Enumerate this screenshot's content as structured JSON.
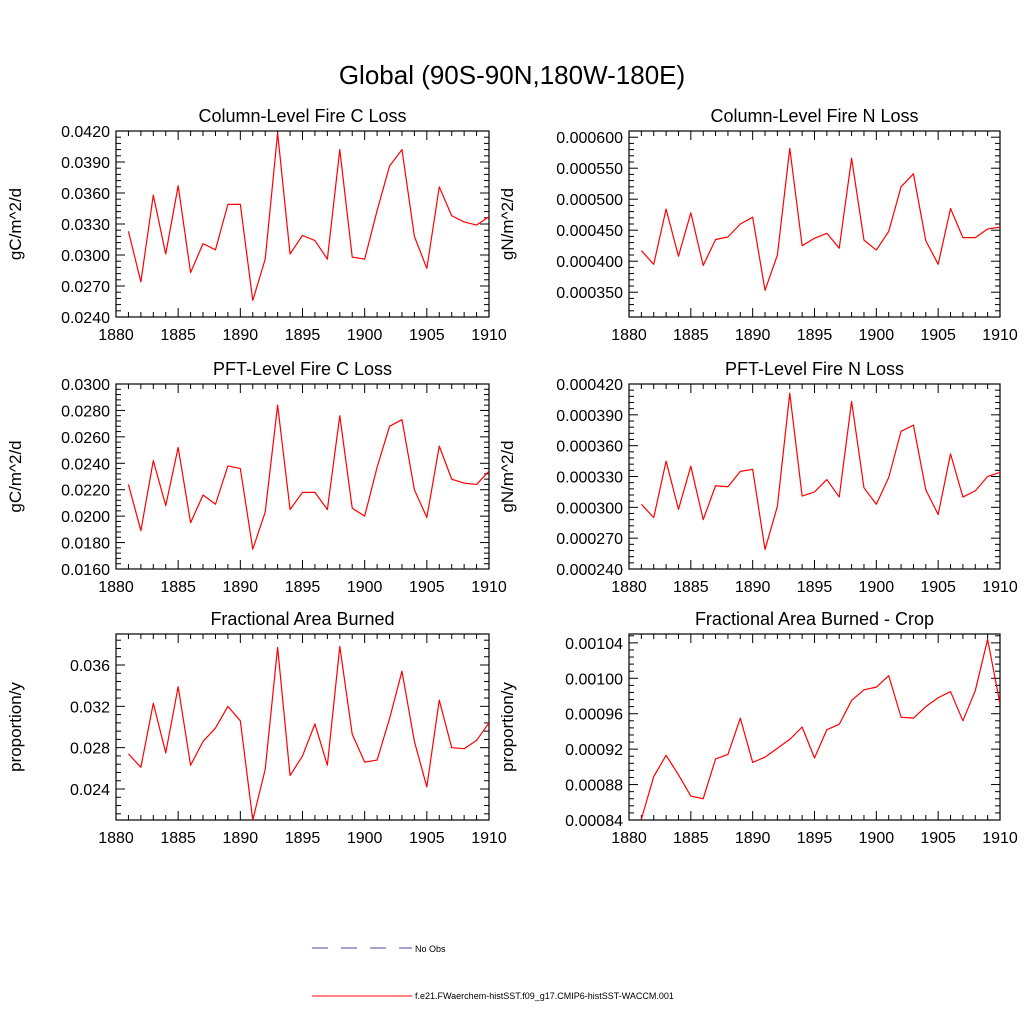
{
  "figure": {
    "title": "Global (90S-90N,180W-180E)"
  },
  "legend": {
    "items": [
      {
        "label": "No Obs",
        "color": "#4a4aa8",
        "style": "dashed"
      },
      {
        "label": "f.e21.FWaerchem-histSST.f09_g17.CMIP6-histSST-WACCM.001",
        "color": "#ff0000",
        "style": "solid"
      }
    ]
  },
  "chart_data": [
    {
      "type": "line",
      "title": "Column-Level Fire C Loss",
      "ylabel": "gC/m^2/d",
      "xlim": [
        1880,
        1910
      ],
      "ylim": [
        0.024,
        0.042
      ],
      "xticks": [
        "1880",
        "1885",
        "1890",
        "1895",
        "1900",
        "1905",
        "1910"
      ],
      "yticks": [
        "0.0240",
        "0.0270",
        "0.0300",
        "0.0330",
        "0.0360",
        "0.0390",
        "0.0420"
      ],
      "series": [
        {
          "color": "#ff0000",
          "x": [
            1881,
            1882,
            1883,
            1884,
            1885,
            1886,
            1887,
            1888,
            1889,
            1890,
            1891,
            1892,
            1893,
            1894,
            1895,
            1896,
            1897,
            1898,
            1899,
            1900,
            1901,
            1902,
            1903,
            1904,
            1905,
            1906,
            1907,
            1908,
            1909,
            1910
          ],
          "values": [
            0.0323,
            0.0274,
            0.0358,
            0.0301,
            0.0367,
            0.0283,
            0.0311,
            0.0305,
            0.0349,
            0.0349,
            0.0256,
            0.0296,
            0.0418,
            0.0301,
            0.0319,
            0.0314,
            0.0296,
            0.0402,
            0.0298,
            0.0296,
            0.0343,
            0.0386,
            0.0402,
            0.0318,
            0.0287,
            0.0366,
            0.0338,
            0.0332,
            0.0329,
            0.0337
          ]
        }
      ]
    },
    {
      "type": "line",
      "title": "Column-Level Fire N Loss",
      "ylabel": "gN/m^2/d",
      "xlim": [
        1880,
        1910
      ],
      "ylim": [
        0.00031,
        0.00061
      ],
      "xticks": [
        "1880",
        "1885",
        "1890",
        "1895",
        "1900",
        "1905",
        "1910"
      ],
      "yticks": [
        "0.000350",
        "0.000400",
        "0.000450",
        "0.000500",
        "0.000550",
        "0.000600"
      ],
      "series": [
        {
          "color": "#ff0000",
          "x": [
            1881,
            1882,
            1883,
            1884,
            1885,
            1886,
            1887,
            1888,
            1889,
            1890,
            1891,
            1892,
            1893,
            1894,
            1895,
            1896,
            1897,
            1898,
            1899,
            1900,
            1901,
            1902,
            1903,
            1904,
            1905,
            1906,
            1907,
            1908,
            1909,
            1910
          ],
          "values": [
            0.000417,
            0.000395,
            0.000484,
            0.000408,
            0.000478,
            0.000393,
            0.000435,
            0.000439,
            0.00046,
            0.000471,
            0.000353,
            0.00041,
            0.000582,
            0.000425,
            0.000437,
            0.000445,
            0.000421,
            0.000566,
            0.000434,
            0.000418,
            0.000448,
            0.00052,
            0.000541,
            0.000433,
            0.000395,
            0.000485,
            0.000438,
            0.000438,
            0.000452,
            0.000455
          ]
        }
      ]
    },
    {
      "type": "line",
      "title": "PFT-Level Fire C Loss",
      "ylabel": "gC/m^2/d",
      "xlim": [
        1880,
        1910
      ],
      "ylim": [
        0.016,
        0.03
      ],
      "xticks": [
        "1880",
        "1885",
        "1890",
        "1895",
        "1900",
        "1905",
        "1910"
      ],
      "yticks": [
        "0.0160",
        "0.0180",
        "0.0200",
        "0.0220",
        "0.0240",
        "0.0260",
        "0.0280",
        "0.0300"
      ],
      "series": [
        {
          "color": "#ff0000",
          "x": [
            1881,
            1882,
            1883,
            1884,
            1885,
            1886,
            1887,
            1888,
            1889,
            1890,
            1891,
            1892,
            1893,
            1894,
            1895,
            1896,
            1897,
            1898,
            1899,
            1900,
            1901,
            1902,
            1903,
            1904,
            1905,
            1906,
            1907,
            1908,
            1909,
            1910
          ],
          "values": [
            0.0224,
            0.0189,
            0.0242,
            0.0208,
            0.0252,
            0.0195,
            0.0216,
            0.0209,
            0.0238,
            0.0236,
            0.0175,
            0.0203,
            0.0284,
            0.0205,
            0.0218,
            0.0218,
            0.0205,
            0.0276,
            0.0206,
            0.02,
            0.0237,
            0.0268,
            0.0273,
            0.022,
            0.0199,
            0.0253,
            0.0228,
            0.0225,
            0.0224,
            0.0234
          ]
        }
      ]
    },
    {
      "type": "line",
      "title": "PFT-Level Fire N Loss",
      "ylabel": "gN/m^2/d",
      "xlim": [
        1880,
        1910
      ],
      "ylim": [
        0.00024,
        0.00042
      ],
      "xticks": [
        "1880",
        "1885",
        "1890",
        "1895",
        "1900",
        "1905",
        "1910"
      ],
      "yticks": [
        "0.000240",
        "0.000270",
        "0.000300",
        "0.000330",
        "0.000360",
        "0.000390",
        "0.000420"
      ],
      "series": [
        {
          "color": "#ff0000",
          "x": [
            1881,
            1882,
            1883,
            1884,
            1885,
            1886,
            1887,
            1888,
            1889,
            1890,
            1891,
            1892,
            1893,
            1894,
            1895,
            1896,
            1897,
            1898,
            1899,
            1900,
            1901,
            1902,
            1903,
            1904,
            1905,
            1906,
            1907,
            1908,
            1909,
            1910
          ],
          "values": [
            0.000303,
            0.00029,
            0.000345,
            0.000298,
            0.00034,
            0.000288,
            0.000321,
            0.00032,
            0.000335,
            0.000337,
            0.000259,
            0.000301,
            0.000411,
            0.000311,
            0.000315,
            0.000327,
            0.00031,
            0.000403,
            0.000319,
            0.000303,
            0.000329,
            0.000374,
            0.00038,
            0.000317,
            0.000293,
            0.000352,
            0.00031,
            0.000316,
            0.00033,
            0.000334
          ]
        }
      ]
    },
    {
      "type": "line",
      "title": "Fractional Area Burned",
      "ylabel": "proportion/y",
      "xlim": [
        1880,
        1910
      ],
      "ylim": [
        0.021,
        0.039
      ],
      "xticks": [
        "1880",
        "1885",
        "1890",
        "1895",
        "1900",
        "1905",
        "1910"
      ],
      "yticks": [
        "0.024",
        "0.028",
        "0.032",
        "0.036"
      ],
      "series": [
        {
          "color": "#ff0000",
          "x": [
            1881,
            1882,
            1883,
            1884,
            1885,
            1886,
            1887,
            1888,
            1889,
            1890,
            1891,
            1892,
            1893,
            1894,
            1895,
            1896,
            1897,
            1898,
            1899,
            1900,
            1901,
            1902,
            1903,
            1904,
            1905,
            1906,
            1907,
            1908,
            1909,
            1910
          ],
          "values": [
            0.0274,
            0.0261,
            0.0323,
            0.0275,
            0.0339,
            0.0263,
            0.0286,
            0.0299,
            0.032,
            0.0306,
            0.021,
            0.0259,
            0.0377,
            0.0253,
            0.0272,
            0.0303,
            0.0263,
            0.0378,
            0.0293,
            0.0266,
            0.0268,
            0.0308,
            0.0354,
            0.0286,
            0.0242,
            0.0326,
            0.028,
            0.0279,
            0.0287,
            0.0304
          ]
        }
      ]
    },
    {
      "type": "line",
      "title": "Fractional Area Burned - Crop",
      "ylabel": "proportion/y",
      "xlim": [
        1880,
        1910
      ],
      "ylim": [
        0.00084,
        0.00105
      ],
      "xticks": [
        "1880",
        "1885",
        "1890",
        "1895",
        "1900",
        "1905",
        "1910"
      ],
      "yticks": [
        "0.00084",
        "0.00088",
        "0.00092",
        "0.00096",
        "0.00100",
        "0.00104"
      ],
      "series": [
        {
          "color": "#ff0000",
          "x": [
            1881,
            1882,
            1883,
            1884,
            1885,
            1886,
            1887,
            1888,
            1889,
            1890,
            1891,
            1892,
            1893,
            1894,
            1895,
            1896,
            1897,
            1898,
            1899,
            1900,
            1901,
            1902,
            1903,
            1904,
            1905,
            1906,
            1907,
            1908,
            1909,
            1910
          ],
          "values": [
            0.000841,
            0.000889,
            0.000913,
            0.000891,
            0.000867,
            0.000864,
            0.000909,
            0.000914,
            0.000955,
            0.000905,
            0.000911,
            0.000921,
            0.000931,
            0.000945,
            0.00091,
            0.000942,
            0.000948,
            0.000975,
            0.000987,
            0.00099,
            0.001003,
            0.000956,
            0.000955,
            0.000968,
            0.000978,
            0.000985,
            0.000952,
            0.000986,
            0.001044,
            0.000971
          ]
        }
      ]
    }
  ]
}
